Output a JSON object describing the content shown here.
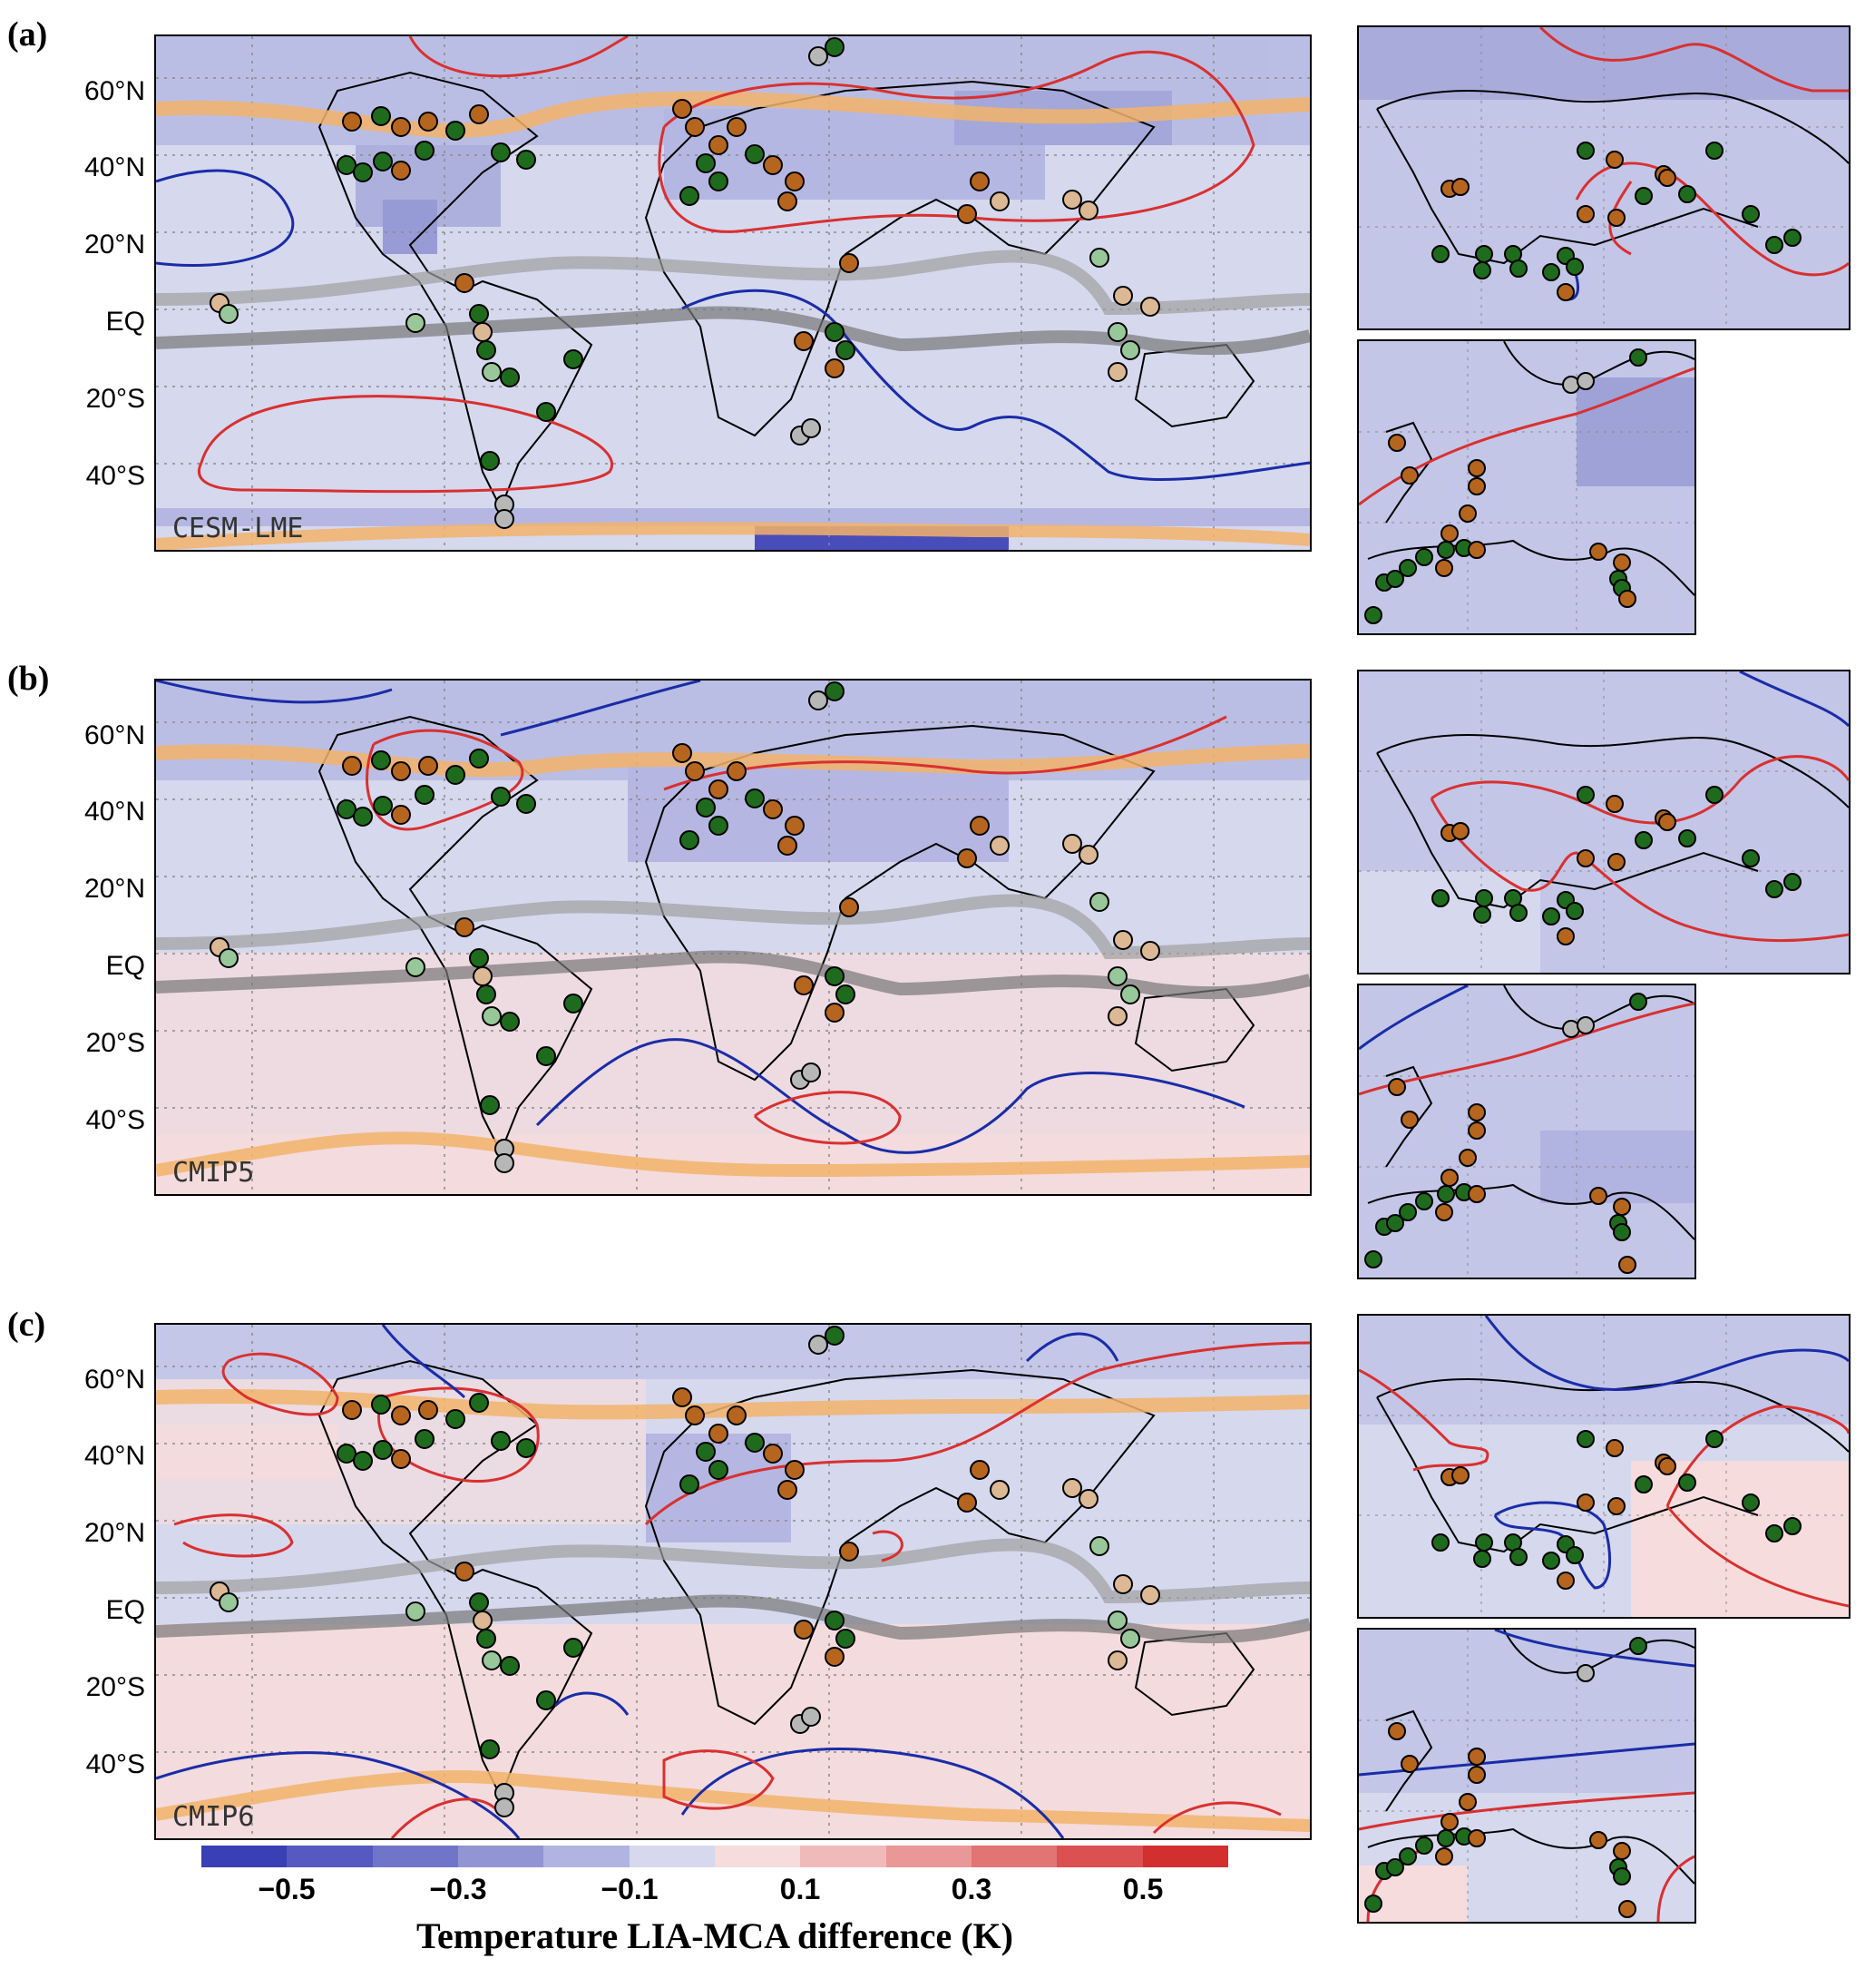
{
  "panels": [
    {
      "letter": "(a)",
      "model": "CESM-LME"
    },
    {
      "letter": "(b)",
      "model": "CMIP5"
    },
    {
      "letter": "(c)",
      "model": "CMIP6"
    }
  ],
  "latitude_labels": [
    "60°N",
    "40°N",
    "20°N",
    "EQ",
    "20°S",
    "40°S"
  ],
  "colorbar": {
    "title": "Temperature LIA-MCA difference (K)",
    "tick_labels": [
      "−0.5",
      "−0.3",
      "−0.1",
      "0.1",
      "0.3",
      "0.5"
    ],
    "colors": [
      "#3a3fb5",
      "#5559c0",
      "#7175c9",
      "#9195d3",
      "#b1b4e0",
      "#d6d8ee",
      "#f6dcdc",
      "#f1baba",
      "#ea9797",
      "#e27474",
      "#db5050",
      "#d32f2f"
    ]
  },
  "legend_colors": {
    "site_dark_green": "#1e6b1e",
    "site_light_green": "#98c89a",
    "site_brown": "#b5651d",
    "site_tan": "#dcb895",
    "site_grey": "#b7b7b7",
    "contour_red": "#d93030",
    "contour_blue": "#1a2ca8",
    "band_orange": "#f2b36a",
    "band_grey": "#9a9a9a"
  }
}
